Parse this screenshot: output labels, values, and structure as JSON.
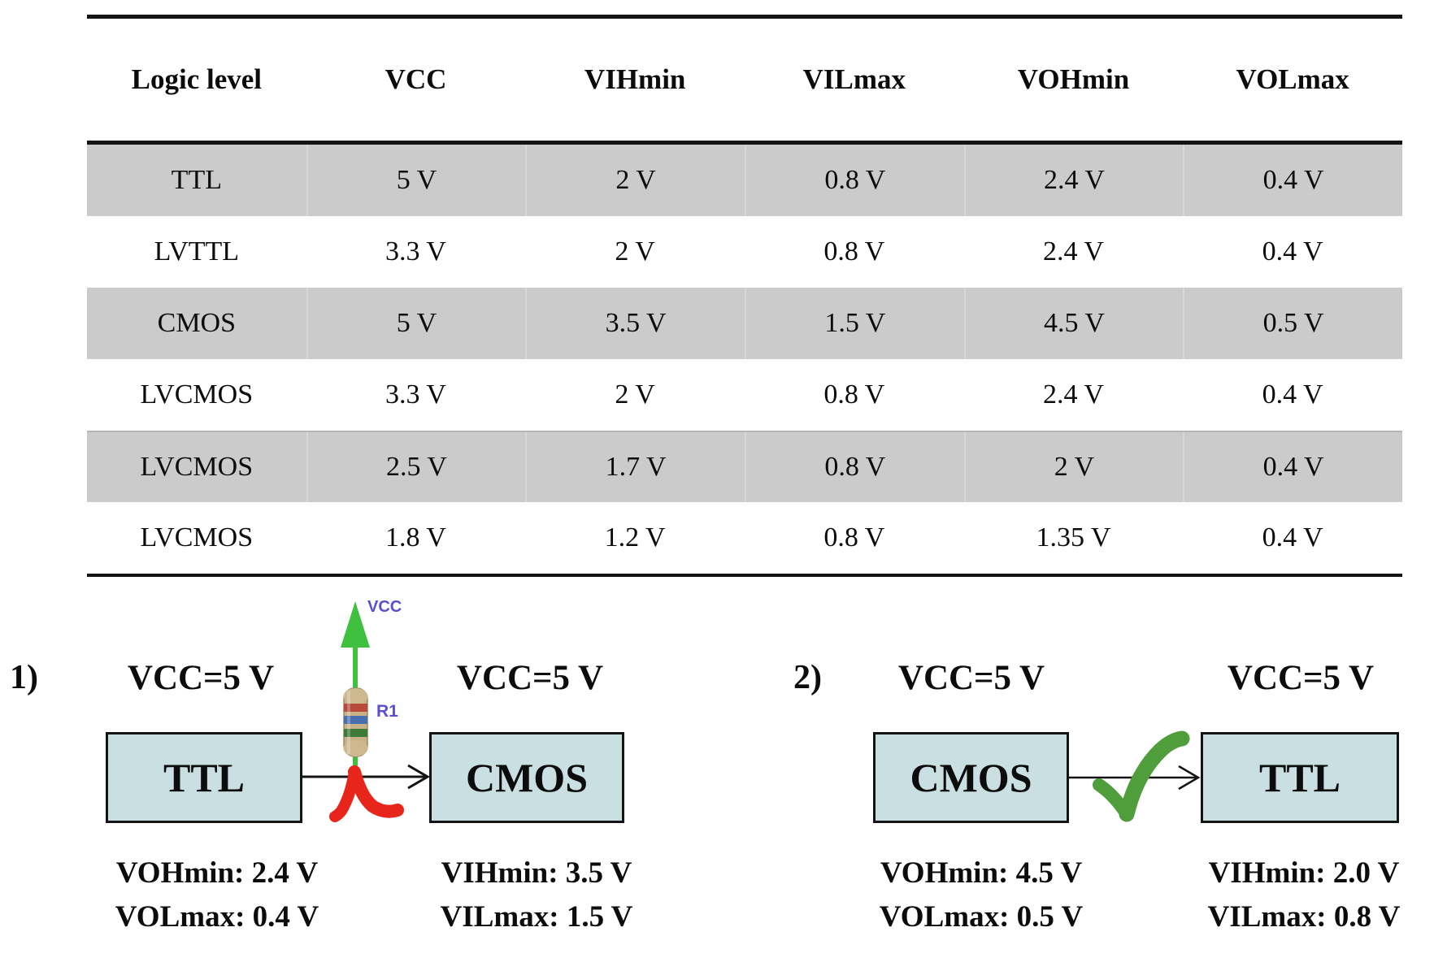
{
  "table": {
    "columns": [
      "Logic level",
      "VCC",
      "VIHmin",
      "VILmax",
      "VOHmin",
      "VOLmax"
    ],
    "rows": [
      {
        "cells": [
          "TTL",
          "5 V",
          "2 V",
          "0.8 V",
          "2.4 V",
          "0.4 V"
        ],
        "shaded": true
      },
      {
        "cells": [
          "LVTTL",
          "3.3 V",
          "2 V",
          "0.8 V",
          "2.4 V",
          "0.4 V"
        ],
        "shaded": false
      },
      {
        "cells": [
          "CMOS",
          "5 V",
          "3.5 V",
          "1.5 V",
          "4.5 V",
          "0.5 V"
        ],
        "shaded": true
      },
      {
        "cells": [
          "LVCMOS",
          "3.3 V",
          "2 V",
          "0.8 V",
          "2.4 V",
          "0.4 V"
        ],
        "shaded": false
      },
      {
        "cells": [
          "LVCMOS",
          "2.5 V",
          "1.7 V",
          "0.8 V",
          "2 V",
          "0.4 V"
        ],
        "shaded": true
      },
      {
        "cells": [
          "LVCMOS",
          "1.8 V",
          "1.2 V",
          "0.8 V",
          "1.35 V",
          "0.4 V"
        ],
        "shaded": false
      }
    ]
  },
  "diagram1": {
    "index_label": "1)",
    "vcc_left": "VCC=5 V",
    "vcc_right": "VCC=5 V",
    "supply_label": "VCC",
    "resistor_label": "R1",
    "source_box": "TTL",
    "dest_box": "CMOS",
    "source_specs": [
      "VOHmin: 2.4 V",
      "VOLmax: 0.4 V"
    ],
    "dest_specs": [
      "VIHmin: 3.5 V",
      "VILmax: 1.5 V"
    ],
    "verdict": "incompatible"
  },
  "diagram2": {
    "index_label": "2)",
    "vcc_left": "VCC=5 V",
    "vcc_right": "VCC=5 V",
    "source_box": "CMOS",
    "dest_box": "TTL",
    "source_specs": [
      "VOHmin: 4.5 V",
      "VOLmax: 0.5 V"
    ],
    "dest_specs": [
      "VIHmin: 2.0 V",
      "VILmax: 0.8 V"
    ],
    "verdict": "compatible"
  },
  "colors": {
    "row_shade": "#cbcbcb",
    "box_fill": "#c9dfe2",
    "arrow_green": "#3fc03f",
    "check_green": "#4f9d3b",
    "cross_red": "#e8251b",
    "net_purple": "#5a4fcf"
  }
}
